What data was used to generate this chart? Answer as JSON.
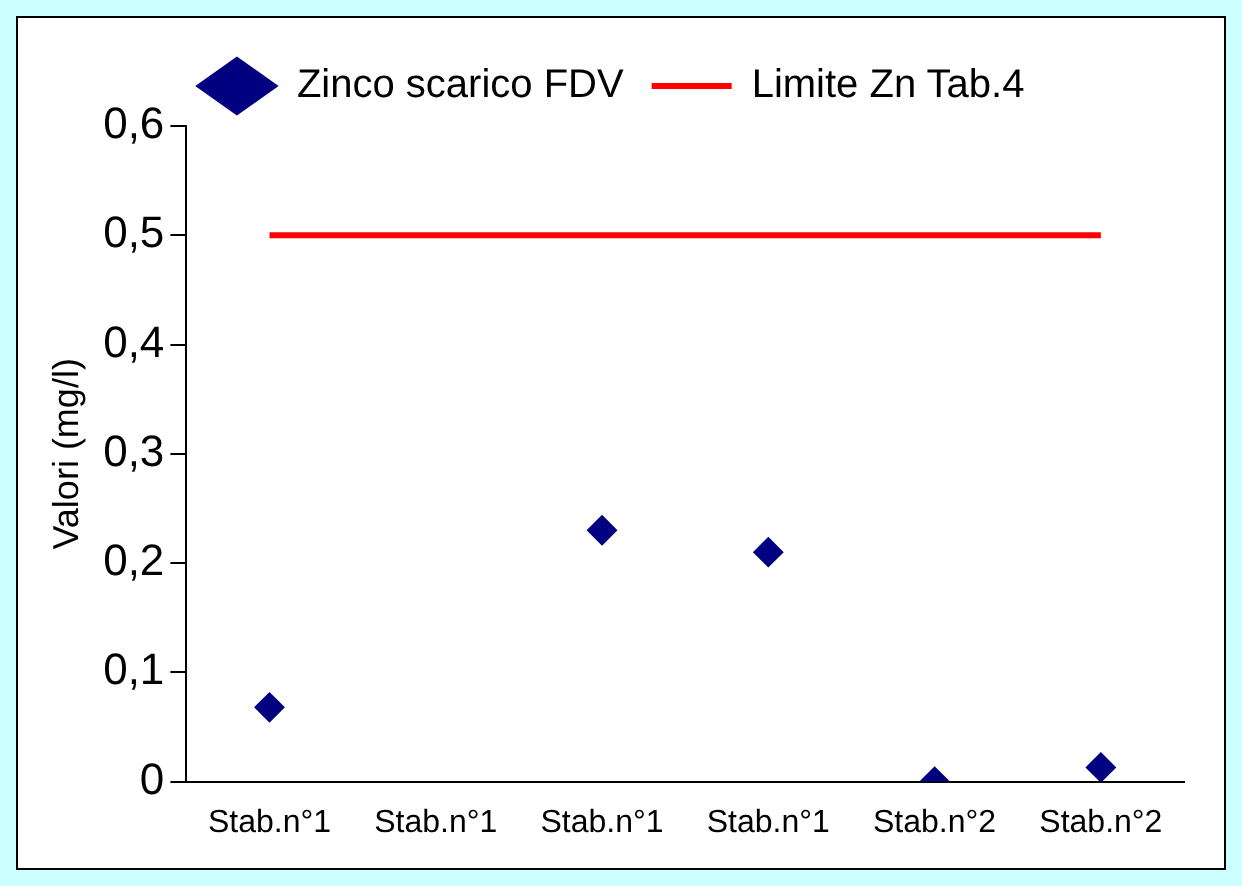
{
  "chart_data": {
    "type": "scatter",
    "ylabel": "Valori (mg/l)",
    "categories": [
      "Stab.n°1",
      "Stab.n°1",
      "Stab.n°1",
      "Stab.n°1",
      "Stab.n°2",
      "Stab.n°2"
    ],
    "series": [
      {
        "name": "Zinco scarico FDV",
        "marker": "diamond",
        "color": "#000080",
        "values": [
          0.068,
          null,
          0.23,
          0.21,
          0.0,
          0.013
        ]
      },
      {
        "name": "Limite Zn Tab.4",
        "type": "line",
        "marker": "none",
        "color": "#ff0000",
        "values": [
          0.5,
          0.5,
          0.5,
          0.5,
          0.5,
          0.5
        ]
      }
    ],
    "ylim": [
      0,
      0.6
    ],
    "yticks": [
      0,
      {
        "value": 0.1,
        "label": "0,1"
      },
      {
        "value": 0.2,
        "label": "0,2"
      },
      {
        "value": 0.3,
        "label": "0,3"
      },
      {
        "value": 0.4,
        "label": "0,4"
      },
      {
        "value": 0.5,
        "label": "0,5"
      },
      {
        "value": 0.6,
        "label": "0,6"
      }
    ],
    "grid": false,
    "legend": "top",
    "line_style": "solid"
  }
}
